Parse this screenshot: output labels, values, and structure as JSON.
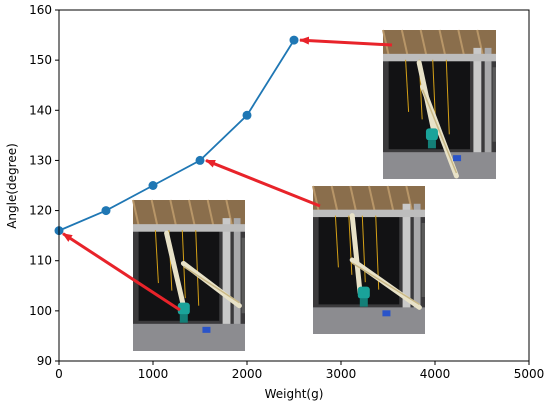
{
  "chart_data": {
    "type": "line",
    "xlabel": "Weight(g)",
    "ylabel": "Angle(degree)",
    "xlim": [
      0,
      5000
    ],
    "ylim": [
      90,
      160
    ],
    "xticks": [
      0,
      1000,
      2000,
      3000,
      4000,
      5000
    ],
    "yticks": [
      90,
      100,
      110,
      120,
      130,
      140,
      150,
      160
    ],
    "grid": false,
    "series": [
      {
        "color": "#1f77b4",
        "x": [
          0,
          500,
          1000,
          1500,
          2000,
          2500
        ],
        "y": [
          116,
          120,
          125,
          130,
          139,
          154
        ]
      }
    ],
    "inset_photos": [
      {
        "points_to": {
          "x": 0,
          "y": 116
        }
      },
      {
        "points_to": {
          "x": 1500,
          "y": 130
        }
      },
      {
        "points_to": {
          "x": 2500,
          "y": 154
        }
      }
    ],
    "arrow_color": "#e8232a"
  }
}
